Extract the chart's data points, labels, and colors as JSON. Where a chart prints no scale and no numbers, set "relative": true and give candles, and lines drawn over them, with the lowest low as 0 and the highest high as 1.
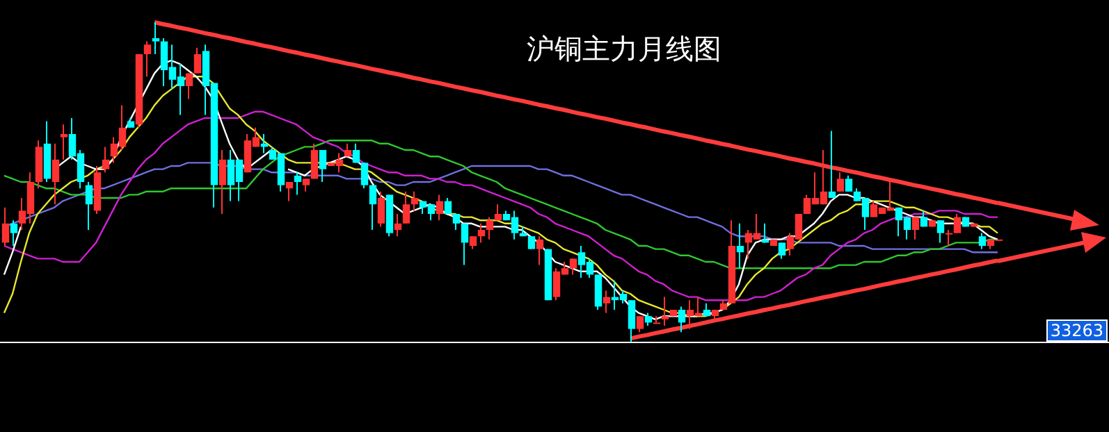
{
  "chart_data": {
    "type": "candlestick",
    "title": "沪铜主力月线图",
    "relative": true,
    "legend": false,
    "marker": "none",
    "annotations": [
      "33263"
    ],
    "categories": [
      null,
      null,
      null,
      null,
      null,
      null,
      null,
      null,
      null,
      null,
      null,
      null,
      null,
      null,
      null,
      null,
      null,
      null,
      null,
      null,
      null,
      null,
      null,
      null,
      null,
      null,
      null,
      null,
      null,
      null,
      null,
      null,
      null,
      null,
      null,
      null,
      null,
      null,
      null,
      null,
      null,
      null,
      null,
      null,
      null,
      null,
      null,
      null,
      null,
      null,
      null,
      null,
      null,
      null,
      null,
      null,
      null,
      null,
      null,
      null,
      null,
      null,
      null,
      null,
      null,
      null,
      null,
      null,
      null,
      null,
      null,
      null,
      null,
      null,
      null,
      null,
      null,
      null,
      null,
      null,
      null,
      null,
      null,
      null,
      null,
      null,
      null,
      null,
      null,
      null,
      null,
      null,
      null,
      null,
      null,
      null,
      null,
      null,
      null,
      null,
      null,
      null,
      null,
      null,
      null,
      null,
      null,
      null,
      null,
      null,
      null,
      null,
      null,
      null,
      null,
      null,
      null,
      null,
      null,
      null
    ],
    "ohlc": [
      [
        0.31,
        0.42,
        0.3,
        0.37
      ],
      [
        0.37,
        0.38,
        0.3,
        0.34
      ],
      [
        0.37,
        0.45,
        0.35,
        0.41
      ],
      [
        0.4,
        0.53,
        0.37,
        0.5
      ],
      [
        0.5,
        0.63,
        0.48,
        0.61
      ],
      [
        0.62,
        0.69,
        0.5,
        0.51
      ],
      [
        0.5,
        0.62,
        0.43,
        0.57
      ],
      [
        0.64,
        0.68,
        0.57,
        0.65
      ],
      [
        0.65,
        0.7,
        0.57,
        0.58
      ],
      [
        0.59,
        0.6,
        0.48,
        0.5
      ],
      [
        0.49,
        0.5,
        0.35,
        0.43
      ],
      [
        0.41,
        0.55,
        0.4,
        0.53
      ],
      [
        0.54,
        0.61,
        0.53,
        0.57
      ],
      [
        0.58,
        0.64,
        0.56,
        0.62
      ],
      [
        0.61,
        0.74,
        0.6,
        0.67
      ],
      [
        0.69,
        0.7,
        0.67,
        0.67
      ],
      [
        0.68,
        0.9,
        0.67,
        0.9
      ],
      [
        0.9,
        0.94,
        0.83,
        0.93
      ],
      [
        0.95,
        1,
        0.9,
        0.94
      ],
      [
        0.94,
        0.95,
        0.8,
        0.85
      ],
      [
        0.86,
        0.93,
        0.79,
        0.82
      ],
      [
        0.83,
        0.87,
        0.71,
        0.8
      ],
      [
        0.8,
        0.84,
        0.76,
        0.84
      ],
      [
        0.84,
        0.92,
        0.84,
        0.9
      ],
      [
        0.91,
        0.93,
        0.71,
        0.8
      ],
      [
        0.81,
        0.81,
        0.42,
        0.49
      ],
      [
        0.49,
        0.6,
        0.4,
        0.57
      ],
      [
        0.57,
        0.6,
        0.44,
        0.49
      ],
      [
        0.57,
        0.57,
        0.44,
        0.5
      ],
      [
        0.53,
        0.65,
        0.53,
        0.63
      ],
      [
        0.61,
        0.67,
        0.61,
        0.64
      ],
      [
        0.62,
        0.65,
        0.59,
        0.61
      ],
      [
        0.6,
        0.61,
        0.57,
        0.57
      ],
      [
        0.59,
        0.59,
        0.47,
        0.49
      ],
      [
        0.48,
        0.5,
        0.44,
        0.5
      ],
      [
        0.52,
        0.53,
        0.46,
        0.5
      ],
      [
        0.49,
        0.51,
        0.47,
        0.51
      ],
      [
        0.51,
        0.62,
        0.51,
        0.6
      ],
      [
        0.6,
        0.6,
        0.5,
        0.54
      ],
      [
        0.55,
        0.56,
        0.55,
        0.56
      ],
      [
        0.55,
        0.59,
        0.53,
        0.57
      ],
      [
        0.58,
        0.62,
        0.58,
        0.6
      ],
      [
        0.6,
        0.62,
        0.56,
        0.56
      ],
      [
        0.56,
        0.56,
        0.48,
        0.49
      ],
      [
        0.49,
        0.49,
        0.35,
        0.43
      ],
      [
        0.37,
        0.47,
        0.36,
        0.45
      ],
      [
        0.46,
        0.46,
        0.33,
        0.34
      ],
      [
        0.35,
        0.4,
        0.33,
        0.37
      ],
      [
        0.37,
        0.47,
        0.37,
        0.43
      ],
      [
        0.43,
        0.47,
        0.41,
        0.45
      ],
      [
        0.44,
        0.44,
        0.4,
        0.42
      ],
      [
        0.43,
        0.43,
        0.38,
        0.4
      ],
      [
        0.4,
        0.46,
        0.38,
        0.44
      ],
      [
        0.44,
        0.45,
        0.4,
        0.4
      ],
      [
        0.4,
        0.4,
        0.35,
        0.37
      ],
      [
        0.37,
        0.37,
        0.24,
        0.31
      ],
      [
        0.3,
        0.33,
        0.29,
        0.33
      ],
      [
        0.33,
        0.37,
        0.31,
        0.35
      ],
      [
        0.35,
        0.39,
        0.32,
        0.38
      ],
      [
        0.38,
        0.43,
        0.38,
        0.4
      ],
      [
        0.4,
        0.41,
        0.38,
        0.38
      ],
      [
        0.39,
        0.41,
        0.32,
        0.34
      ],
      [
        0.34,
        0.36,
        0.33,
        0.33
      ],
      [
        0.33,
        0.33,
        0.29,
        0.29
      ],
      [
        0.29,
        0.33,
        0.24,
        0.32
      ],
      [
        0.29,
        0.29,
        0.13,
        0.13
      ],
      [
        0.14,
        0.23,
        0.13,
        0.22
      ],
      [
        0.21,
        0.25,
        0.21,
        0.23
      ],
      [
        0.23,
        0.26,
        0.21,
        0.26
      ],
      [
        0.28,
        0.3,
        0.2,
        0.24
      ],
      [
        0.25,
        0.26,
        0.2,
        0.21
      ],
      [
        0.21,
        0.21,
        0.1,
        0.11
      ],
      [
        0.12,
        0.16,
        0.09,
        0.14
      ],
      [
        0.14,
        0.19,
        0.1,
        0.13
      ],
      [
        0.15,
        0.16,
        0.12,
        0.13
      ],
      [
        0.13,
        0.13,
        0,
        0.04
      ],
      [
        0.04,
        0.08,
        0.03,
        0.08
      ],
      [
        0.08,
        0.09,
        0.05,
        0.06
      ],
      [
        0.06,
        0.08,
        0.06,
        0.06
      ],
      [
        0.07,
        0.14,
        0.05,
        0.08
      ],
      [
        0.08,
        0.1,
        0.08,
        0.1
      ],
      [
        0.1,
        0.11,
        0.03,
        0.06
      ],
      [
        0.08,
        0.13,
        0.04,
        0.1
      ],
      [
        0.08,
        0.14,
        0.08,
        0.09
      ],
      [
        0.1,
        0.12,
        0.08,
        0.08
      ],
      [
        0.08,
        0.1,
        0.07,
        0.1
      ],
      [
        0.1,
        0.13,
        0.1,
        0.12
      ],
      [
        0.12,
        0.38,
        0.12,
        0.3
      ],
      [
        0.3,
        0.37,
        0.23,
        0.28
      ],
      [
        0.31,
        0.35,
        0.26,
        0.34
      ],
      [
        0.32,
        0.4,
        0.32,
        0.34
      ],
      [
        0.32,
        0.37,
        0.31,
        0.31
      ],
      [
        0.3,
        0.32,
        0.3,
        0.32
      ],
      [
        0.31,
        0.31,
        0.26,
        0.27
      ],
      [
        0.29,
        0.34,
        0.27,
        0.33
      ],
      [
        0.32,
        0.4,
        0.32,
        0.4
      ],
      [
        0.4,
        0.46,
        0.4,
        0.45
      ],
      [
        0.43,
        0.53,
        0.43,
        0.45
      ],
      [
        0.43,
        0.6,
        0.43,
        0.47
      ],
      [
        0.47,
        0.66,
        0.45,
        0.45
      ],
      [
        0.47,
        0.53,
        0.47,
        0.51
      ],
      [
        0.51,
        0.52,
        0.47,
        0.47
      ],
      [
        0.47,
        0.48,
        0.44,
        0.44
      ],
      [
        0.45,
        0.45,
        0.35,
        0.39
      ],
      [
        0.39,
        0.44,
        0.39,
        0.43
      ],
      [
        0.4,
        0.42,
        0.4,
        0.42
      ],
      [
        0.41,
        0.5,
        0.41,
        0.42
      ],
      [
        0.42,
        0.42,
        0.33,
        0.38
      ],
      [
        0.39,
        0.39,
        0.32,
        0.35
      ],
      [
        0.35,
        0.39,
        0.32,
        0.39
      ],
      [
        0.39,
        0.41,
        0.36,
        0.36
      ],
      [
        0.36,
        0.38,
        0.36,
        0.38
      ],
      [
        0.38,
        0.38,
        0.31,
        0.34
      ],
      [
        0.34,
        0.35,
        0.3,
        0.34
      ],
      [
        0.34,
        0.4,
        0.34,
        0.39
      ],
      [
        0.39,
        0.39,
        0.36,
        0.36
      ],
      [
        0.36,
        0.37,
        0.36,
        0.37
      ],
      [
        0.33,
        0.34,
        0.29,
        0.3
      ],
      [
        0.3,
        0.32,
        0.29,
        0.32
      ],
      [
        0.32,
        0.32,
        0.32,
        0.32
      ]
    ],
    "colors": [
      "#ff3232",
      "#00ffff",
      "#ff3232",
      "#ff3232",
      "#ff3232",
      "#00ffff",
      "#ff3232",
      "#ff3232",
      "#00ffff",
      "#00ffff",
      "#00ffff",
      "#ff3232",
      "#ff3232",
      "#ff3232",
      "#ff3232",
      "#00ffff",
      "#ff3232",
      "#ff3232",
      "#00ffff",
      "#00ffff",
      "#00ffff",
      "#00ffff",
      "#ff3232",
      "#ff3232",
      "#00ffff",
      "#00ffff",
      "#ff3232",
      "#00ffff",
      "#00ffff",
      "#ff3232",
      "#ff3232",
      "#00ffff",
      "#00ffff",
      "#00ffff",
      "#ff3232",
      "#00ffff",
      "#ff3232",
      "#ff3232",
      "#00ffff",
      "#ff3232",
      "#ff3232",
      "#ff3232",
      "#00ffff",
      "#00ffff",
      "#00ffff",
      "#ff3232",
      "#00ffff",
      "#ff3232",
      "#ff3232",
      "#ff3232",
      "#00ffff",
      "#00ffff",
      "#ff3232",
      "#00ffff",
      "#00ffff",
      "#00ffff",
      "#ff3232",
      "#ff3232",
      "#ff3232",
      "#ff3232",
      "#00ffff",
      "#00ffff",
      "#00ffff",
      "#00ffff",
      "#ff3232",
      "#00ffff",
      "#ff3232",
      "#ff3232",
      "#ff3232",
      "#00ffff",
      "#00ffff",
      "#00ffff",
      "#ff3232",
      "#00ffff",
      "#00ffff",
      "#00ffff",
      "#ff3232",
      "#00ffff",
      "#ff3232",
      "#ff3232",
      "#ff3232",
      "#00ffff",
      "#ff3232",
      "#ff3232",
      "#00ffff",
      "#ff3232",
      "#ff3232",
      "#ff3232",
      "#00ffff",
      "#ff3232",
      "#ff3232",
      "#00ffff",
      "#ff3232",
      "#00ffff",
      "#ff3232",
      "#ff3232",
      "#ff3232",
      "#ff3232",
      "#ff3232",
      "#00ffff",
      "#ff3232",
      "#00ffff",
      "#00ffff",
      "#00ffff",
      "#ff3232",
      "#ff3232",
      "#ff3232",
      "#00ffff",
      "#00ffff",
      "#ff3232",
      "#00ffff",
      "#ff3232",
      "#00ffff",
      "#ff3232",
      "#ff3232",
      "#00ffff",
      "#ff3232",
      "#00ffff",
      "#ff3232",
      "#ff3232"
    ],
    "series": [
      {
        "type": "line",
        "color": "#ffffff",
        "values": [
          0.21,
          0.28,
          0.36,
          null,
          null,
          null,
          0.54,
          0.56,
          0.58,
          0.56,
          0.55,
          0.54,
          0.54,
          0.57,
          0.64,
          0.69,
          0.74,
          0.79,
          0.84,
          0.87,
          0.88,
          0.87,
          0.85,
          0.83,
          0.8,
          0.76,
          0.69,
          0.62,
          0.57,
          0.54,
          0.56,
          0.58,
          0.6,
          null,
          0.54,
          0.53,
          0.52,
          0.54,
          0.55,
          0.56,
          0.57,
          0.58,
          0.57,
          0.55,
          0.5,
          0.46,
          0.44,
          0.42,
          0.4,
          0.41,
          0.42,
          0.43,
          0.42,
          0.4,
          0.39,
          0.37,
          0.37,
          0.36,
          0.36,
          0.36,
          0.36,
          0.35,
          0.35,
          0.33,
          0.31,
          0.28,
          0.25,
          0.24,
          0.23,
          0.22,
          0.22,
          0.22,
          0.2,
          0.17,
          0.14,
          0.11,
          0.09,
          0.08,
          0.07,
          0.08,
          0.08,
          0.08,
          0.08,
          0.08,
          0.09,
          0.09,
          0.1,
          0.13,
          0.18,
          0.27,
          0.31,
          0.32,
          0.32,
          0.32,
          0.33,
          0.33,
          0.35,
          0.37,
          0.4,
          0.44,
          0.46,
          0.46,
          0.45,
          0.45,
          0.44,
          0.43,
          0.42,
          0.41,
          0.4,
          0.39,
          0.39,
          0.38,
          0.37,
          0.37,
          0.37,
          0.37,
          0.37,
          0.35,
          0.33,
          0.32
        ]
      },
      {
        "type": "line",
        "color": "#e8e830",
        "values": [
          0.09,
          0.15,
          0.25,
          0.34,
          0.4,
          0.43,
          0.46,
          0.48,
          0.5,
          0.51,
          0.52,
          0.54,
          0.55,
          0.57,
          0.6,
          0.64,
          0.67,
          0.7,
          0.74,
          0.77,
          0.79,
          0.81,
          0.83,
          0.83,
          0.83,
          0.81,
          0.77,
          0.73,
          0.71,
          0.68,
          0.66,
          0.63,
          0.61,
          0.59,
          0.57,
          0.56,
          0.56,
          0.56,
          0.56,
          0.56,
          0.56,
          0.55,
          0.54,
          0.54,
          0.53,
          0.51,
          0.49,
          0.47,
          0.46,
          0.45,
          0.44,
          0.42,
          0.41,
          0.4,
          0.4,
          0.39,
          0.39,
          0.38,
          0.38,
          0.38,
          0.37,
          0.37,
          0.36,
          0.35,
          0.34,
          0.32,
          0.31,
          0.29,
          0.28,
          0.27,
          0.26,
          0.24,
          0.21,
          0.19,
          0.16,
          0.15,
          0.13,
          0.12,
          0.11,
          0.1,
          0.09,
          0.09,
          0.08,
          0.08,
          0.08,
          0.09,
          0.1,
          0.12,
          0.14,
          0.18,
          0.21,
          0.23,
          0.26,
          0.28,
          0.29,
          0.31,
          0.33,
          0.35,
          0.37,
          0.38,
          0.4,
          0.41,
          0.43,
          0.43,
          0.44,
          0.44,
          0.44,
          0.43,
          0.42,
          0.42,
          0.41,
          0.4,
          0.39,
          0.39,
          0.38,
          0.37,
          0.37,
          0.36,
          0.36,
          0.34
        ]
      },
      {
        "type": "line",
        "color": "#d020d0",
        "values": [
          0.3,
          0.29,
          0.28,
          0.27,
          0.26,
          0.26,
          0.26,
          0.25,
          0.25,
          0.25,
          0.28,
          0.31,
          0.36,
          0.41,
          0.46,
          0.5,
          0.54,
          0.57,
          0.59,
          0.62,
          0.64,
          0.66,
          0.68,
          0.69,
          0.7,
          0.7,
          0.7,
          0.7,
          0.7,
          0.71,
          0.72,
          0.72,
          0.71,
          0.7,
          0.69,
          0.68,
          0.66,
          0.64,
          0.63,
          0.62,
          0.61,
          0.59,
          0.58,
          0.56,
          0.55,
          0.54,
          0.53,
          0.53,
          0.52,
          0.52,
          0.52,
          0.51,
          0.51,
          0.5,
          0.5,
          0.49,
          0.49,
          0.48,
          0.47,
          0.46,
          0.45,
          0.44,
          0.43,
          0.42,
          0.4,
          0.39,
          0.37,
          0.36,
          0.35,
          0.34,
          0.33,
          0.31,
          0.29,
          0.27,
          0.26,
          0.24,
          0.22,
          0.21,
          0.19,
          0.18,
          0.16,
          0.15,
          0.14,
          0.14,
          0.13,
          0.13,
          0.13,
          0.13,
          0.13,
          0.13,
          0.14,
          0.14,
          0.15,
          0.16,
          0.18,
          0.2,
          0.21,
          0.23,
          0.24,
          0.27,
          0.29,
          0.31,
          0.32,
          0.34,
          0.35,
          0.37,
          0.38,
          0.39,
          0.39,
          0.4,
          0.4,
          0.4,
          0.41,
          0.41,
          0.41,
          0.4,
          0.4,
          0.4,
          0.39,
          0.39
        ]
      },
      {
        "type": "line",
        "color": "#30c830",
        "values": [
          0.52,
          0.51,
          0.5,
          0.5,
          0.49,
          0.48,
          0.48,
          0.47,
          0.46,
          0.46,
          0.46,
          0.45,
          0.45,
          0.45,
          0.45,
          0.46,
          0.46,
          0.47,
          0.47,
          0.47,
          0.48,
          0.48,
          0.48,
          0.48,
          0.48,
          0.48,
          0.48,
          0.48,
          0.48,
          0.48,
          0.51,
          0.54,
          0.56,
          0.58,
          0.59,
          0.6,
          0.61,
          0.61,
          0.62,
          0.63,
          0.63,
          0.63,
          0.63,
          0.63,
          0.63,
          0.62,
          0.62,
          0.61,
          0.6,
          0.6,
          0.59,
          0.58,
          0.58,
          0.57,
          0.56,
          0.55,
          0.53,
          0.52,
          0.51,
          0.5,
          0.48,
          0.47,
          0.46,
          0.45,
          0.44,
          0.43,
          0.42,
          0.41,
          0.4,
          0.39,
          0.38,
          0.37,
          0.35,
          0.34,
          0.33,
          0.32,
          0.3,
          0.3,
          0.29,
          0.29,
          0.28,
          0.27,
          0.27,
          0.26,
          0.25,
          0.25,
          0.24,
          0.23,
          0.23,
          0.23,
          0.23,
          0.23,
          0.23,
          0.23,
          0.23,
          0.23,
          0.23,
          0.23,
          0.23,
          0.23,
          0.24,
          0.24,
          0.24,
          0.25,
          0.25,
          0.25,
          0.26,
          0.27,
          0.27,
          0.28,
          0.28,
          0.29,
          0.29,
          0.3,
          0.31,
          0.31,
          0.31,
          0.31,
          0.32,
          0.32
        ]
      },
      {
        "type": "line",
        "color": "#7070e0",
        "values": [
          0.36,
          0.37,
          0.38,
          0.39,
          0.4,
          0.41,
          0.42,
          0.44,
          0.45,
          0.46,
          0.47,
          0.48,
          0.48,
          0.49,
          0.5,
          0.51,
          0.52,
          0.53,
          0.54,
          0.54,
          0.55,
          0.55,
          0.56,
          0.56,
          0.56,
          0.56,
          0.55,
          0.55,
          0.55,
          0.54,
          0.54,
          0.54,
          0.53,
          0.53,
          0.53,
          0.53,
          0.52,
          0.52,
          0.52,
          0.52,
          0.52,
          0.51,
          0.51,
          0.51,
          0.51,
          0.5,
          0.5,
          0.49,
          0.49,
          0.5,
          0.5,
          0.5,
          0.51,
          0.52,
          0.53,
          0.54,
          0.55,
          0.55,
          0.55,
          0.55,
          0.55,
          0.55,
          0.55,
          0.55,
          0.54,
          0.54,
          0.53,
          0.52,
          0.52,
          0.51,
          0.5,
          0.49,
          0.48,
          0.47,
          0.46,
          0.46,
          0.45,
          0.44,
          0.43,
          0.42,
          0.41,
          0.4,
          0.39,
          0.39,
          0.38,
          0.37,
          0.36,
          0.34,
          0.33,
          0.33,
          0.33,
          0.33,
          0.32,
          0.32,
          0.32,
          0.31,
          0.31,
          0.31,
          0.31,
          0.31,
          0.3,
          0.3,
          0.3,
          0.3,
          0.29,
          0.29,
          0.29,
          0.29,
          0.29,
          0.29,
          0.29,
          0.29,
          0.29,
          0.29,
          0.29,
          0.29,
          0.28,
          0.28,
          0.28,
          0.28
        ]
      },
      {
        "type": "line",
        "color": "#ff3c3c",
        "values": [
          null,
          null,
          null,
          null,
          null,
          null,
          null,
          null,
          null,
          null,
          null,
          null,
          null,
          null,
          null,
          null,
          null,
          null,
          1,
          0.994,
          0.989,
          0.983,
          0.978,
          0.972,
          0.966,
          0.961,
          0.955,
          0.95,
          0.944,
          0.938,
          0.933,
          0.927,
          0.922,
          0.916,
          0.91,
          0.905,
          0.899,
          0.894,
          0.888,
          0.882,
          0.877,
          0.871,
          0.866,
          0.86,
          0.854,
          0.849,
          0.843,
          0.838,
          0.832,
          0.826,
          0.821,
          0.815,
          0.81,
          0.804,
          0.798,
          0.793,
          0.787,
          0.782,
          0.776,
          0.77,
          0.765,
          0.759,
          0.754,
          0.748,
          0.742,
          0.737,
          0.731,
          0.726,
          0.72,
          0.714,
          0.709,
          0.703,
          0.698,
          0.692,
          0.686,
          0.681,
          0.675,
          0.67,
          0.664,
          0.658,
          0.653,
          0.647,
          0.642,
          0.636,
          0.63,
          0.625,
          0.619,
          0.614,
          0.608,
          0.602,
          0.597,
          0.591,
          0.586,
          0.58,
          0.574,
          0.569,
          0.563,
          0.558,
          0.552,
          0.546,
          0.541,
          0.535,
          0.53,
          0.524,
          0.518,
          0.513,
          0.507,
          0.502,
          0.496,
          0.49,
          0.485,
          0.479,
          0.474,
          0.468,
          0.462,
          0.457,
          0.451,
          0.446,
          0.44,
          0.434
        ]
      },
      {
        "type": "line",
        "color": "#ff3c3c",
        "values": [
          null,
          null,
          null,
          null,
          null,
          null,
          null,
          null,
          null,
          null,
          null,
          null,
          null,
          null,
          null,
          null,
          null,
          null,
          null,
          null,
          null,
          null,
          null,
          null,
          null,
          null,
          null,
          null,
          null,
          null,
          null,
          null,
          null,
          null,
          null,
          null,
          null,
          null,
          null,
          null,
          null,
          null,
          null,
          null,
          null,
          null,
          null,
          null,
          null,
          null,
          null,
          null,
          null,
          null,
          null,
          null,
          null,
          null,
          null,
          null,
          null,
          null,
          null,
          null,
          null,
          null,
          null,
          null,
          null,
          null,
          null,
          null,
          null,
          null,
          null,
          0.01,
          0.016,
          0.021,
          0.027,
          0.032,
          0.038,
          0.043,
          0.049,
          0.054,
          0.06,
          0.066,
          0.071,
          0.077,
          0.082,
          0.088,
          0.093,
          0.099,
          0.104,
          0.11,
          0.115,
          0.121,
          0.127,
          0.132,
          0.138,
          0.143,
          0.149,
          0.154,
          0.16,
          0.165,
          0.171,
          0.177,
          0.182,
          0.188,
          0.193,
          0.199,
          0.204,
          0.21,
          0.215,
          0.221,
          0.226,
          0.232,
          0.238,
          0.243,
          0.249,
          0.254
        ]
      }
    ]
  }
}
